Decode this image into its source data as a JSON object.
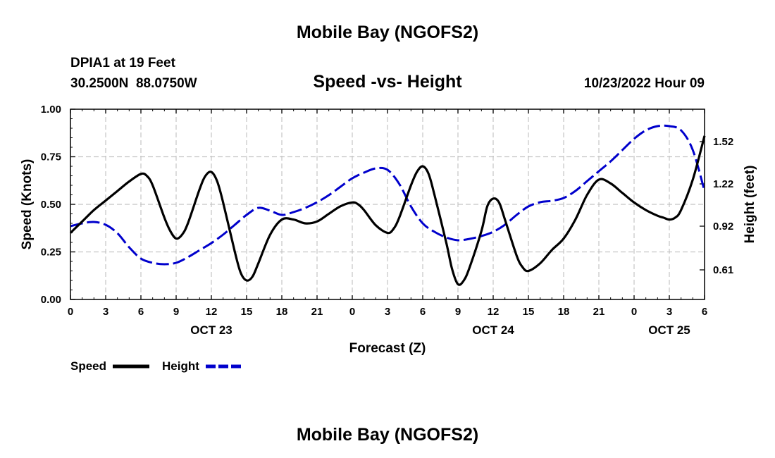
{
  "page": {
    "title": "Mobile Bay (NGOFS2)",
    "footer_title": "Mobile Bay (NGOFS2)"
  },
  "header": {
    "station": "DPIA1 at 19 Feet",
    "coords": "30.2500N  88.0750W",
    "subtitle": "Speed -vs- Height",
    "timestamp": "10/23/2022 Hour 09"
  },
  "chart_data": {
    "type": "line",
    "title": "Speed -vs- Height",
    "xlabel": "Forecast (Z)",
    "ylabel": "Speed (Knots)",
    "ylabel_right": "Height (feet)",
    "x_range_hours": [
      0,
      54
    ],
    "x_ticks": [
      {
        "h": 0,
        "label": "0"
      },
      {
        "h": 3,
        "label": "3"
      },
      {
        "h": 6,
        "label": "6"
      },
      {
        "h": 9,
        "label": "9"
      },
      {
        "h": 12,
        "label": "12"
      },
      {
        "h": 15,
        "label": "15"
      },
      {
        "h": 18,
        "label": "18"
      },
      {
        "h": 21,
        "label": "21"
      },
      {
        "h": 24,
        "label": "0"
      },
      {
        "h": 27,
        "label": "3"
      },
      {
        "h": 30,
        "label": "6"
      },
      {
        "h": 33,
        "label": "9"
      },
      {
        "h": 36,
        "label": "12"
      },
      {
        "h": 39,
        "label": "15"
      },
      {
        "h": 42,
        "label": "18"
      },
      {
        "h": 45,
        "label": "21"
      },
      {
        "h": 48,
        "label": "0"
      },
      {
        "h": 51,
        "label": "3"
      },
      {
        "h": 54,
        "label": "6"
      }
    ],
    "date_labels": [
      {
        "h": 12,
        "label": "OCT 23"
      },
      {
        "h": 36,
        "label": "OCT 24"
      },
      {
        "h": 51,
        "label": "OCT 25"
      }
    ],
    "y_left": {
      "range": [
        0,
        1
      ],
      "ticks": [
        "0.00",
        "0.25",
        "0.50",
        "0.75",
        "1.00"
      ]
    },
    "y_right": {
      "range": [
        0.4,
        1.75
      ],
      "ticks": [
        "0.61",
        "0.92",
        "1.22",
        "1.52"
      ]
    },
    "grid": true,
    "legend_position": "bottom-left",
    "series": [
      {
        "name": "Speed",
        "axis": "left",
        "color": "#000000",
        "style": "solid",
        "x": [
          0,
          1,
          2,
          3,
          4,
          5,
          6,
          6.5,
          7,
          8,
          8.5,
          9,
          9.5,
          10,
          11,
          11.5,
          12,
          12.5,
          13,
          14,
          14.5,
          15,
          15.5,
          16,
          17,
          18,
          19,
          20,
          21,
          22,
          23,
          24,
          24.5,
          25,
          26,
          27,
          27.5,
          28,
          29,
          29.5,
          30,
          30.5,
          31,
          32,
          32.5,
          33,
          33.5,
          34,
          35,
          35.5,
          36,
          36.5,
          37,
          38,
          38.5,
          39,
          40,
          41,
          42,
          43,
          44,
          45,
          46,
          47,
          48,
          49,
          50,
          50.5,
          51,
          51.5,
          52,
          53,
          54
        ],
        "y": [
          0.35,
          0.41,
          0.47,
          0.52,
          0.57,
          0.62,
          0.66,
          0.65,
          0.6,
          0.43,
          0.36,
          0.32,
          0.34,
          0.4,
          0.58,
          0.65,
          0.67,
          0.62,
          0.51,
          0.25,
          0.14,
          0.1,
          0.12,
          0.19,
          0.34,
          0.42,
          0.42,
          0.4,
          0.41,
          0.45,
          0.49,
          0.51,
          0.5,
          0.47,
          0.39,
          0.35,
          0.37,
          0.43,
          0.6,
          0.67,
          0.7,
          0.66,
          0.55,
          0.3,
          0.16,
          0.08,
          0.1,
          0.17,
          0.36,
          0.49,
          0.53,
          0.51,
          0.42,
          0.23,
          0.17,
          0.15,
          0.19,
          0.26,
          0.32,
          0.42,
          0.55,
          0.63,
          0.61,
          0.56,
          0.51,
          0.47,
          0.44,
          0.43,
          0.42,
          0.43,
          0.47,
          0.63,
          0.86
        ]
      },
      {
        "name": "Height",
        "axis": "right",
        "color": "#0000cc",
        "style": "dashed",
        "x": [
          0,
          1,
          2,
          3,
          4,
          5,
          6,
          7,
          8,
          9,
          10,
          11,
          12,
          13,
          14,
          15,
          16,
          17,
          18,
          19,
          20,
          21,
          22,
          23,
          24,
          25,
          26,
          27,
          28,
          29,
          30,
          31,
          32,
          33,
          34,
          35,
          36,
          37,
          38,
          39,
          40,
          41,
          42,
          43,
          44,
          45,
          46,
          47,
          48,
          49,
          50,
          51,
          52,
          53,
          54
        ],
        "y": [
          0.92,
          0.94,
          0.95,
          0.93,
          0.87,
          0.77,
          0.69,
          0.66,
          0.65,
          0.66,
          0.7,
          0.75,
          0.8,
          0.86,
          0.93,
          1.0,
          1.05,
          1.03,
          1.0,
          1.02,
          1.05,
          1.09,
          1.14,
          1.2,
          1.26,
          1.3,
          1.33,
          1.32,
          1.22,
          1.06,
          0.94,
          0.88,
          0.84,
          0.82,
          0.83,
          0.85,
          0.88,
          0.93,
          1.0,
          1.06,
          1.09,
          1.1,
          1.12,
          1.17,
          1.24,
          1.31,
          1.38,
          1.46,
          1.54,
          1.6,
          1.63,
          1.63,
          1.6,
          1.46,
          1.17
        ]
      }
    ]
  }
}
